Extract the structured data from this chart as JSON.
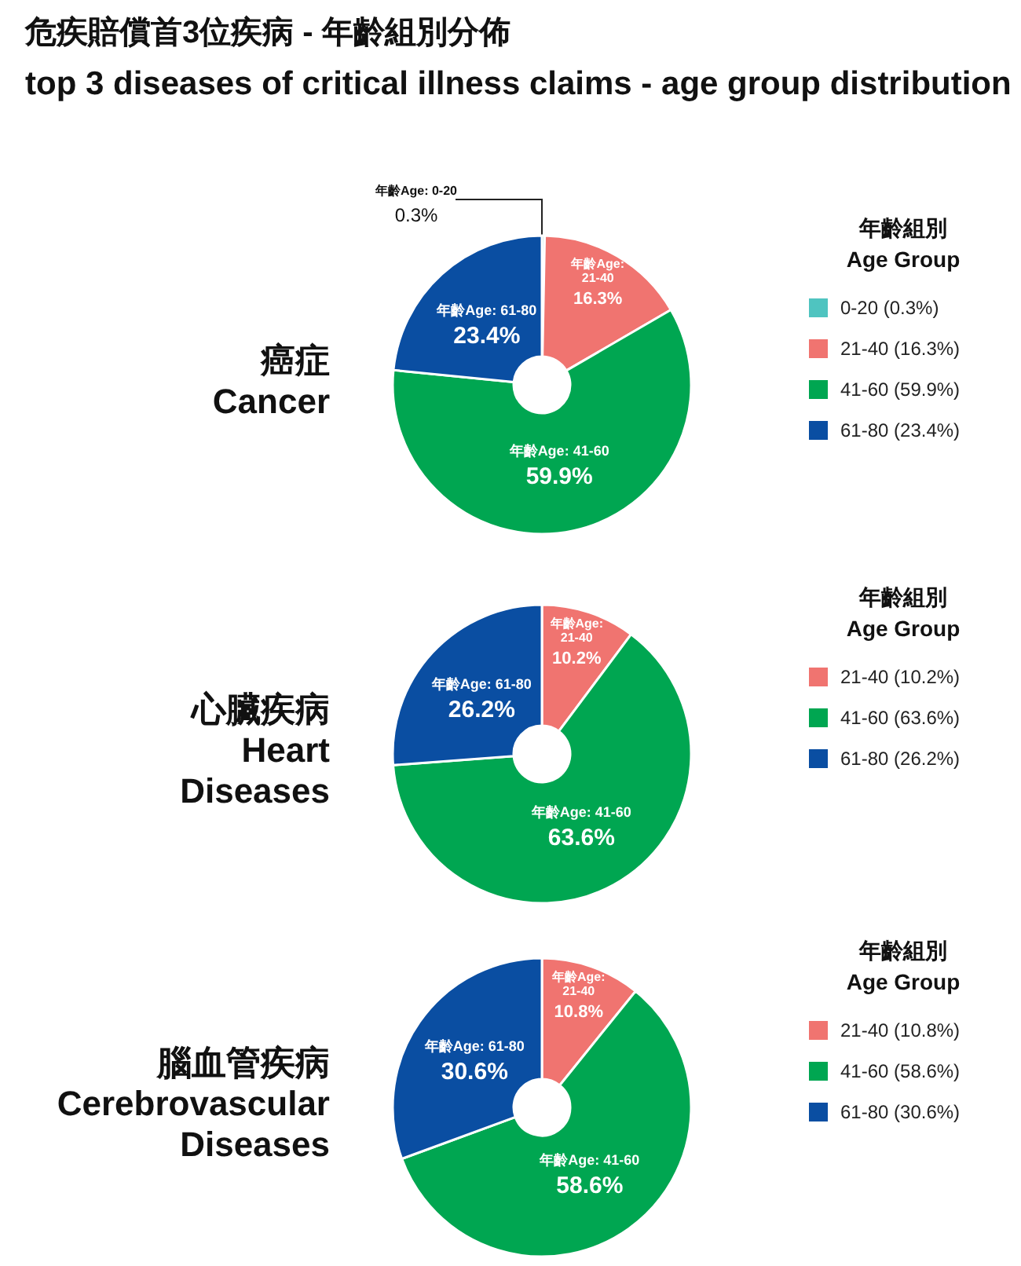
{
  "chart_data": [
    {
      "type": "other",
      "title": "危疾賠償首3位疾病 - 年齡組別分佈",
      "subtitle": "top 3 diseases of critical illness claims - age group distribution"
    },
    {
      "type": "donut",
      "title": "癌症",
      "subtitle": "Cancer",
      "legend_title": "年齡組別\nAge Group",
      "legend": "right",
      "categories": [
        "0-20 (0.3%)",
        "21-40 (16.3%)",
        "41-60 (59.9%)",
        "61-80 (23.4%)"
      ],
      "values": [
        0.3,
        16.3,
        59.9,
        23.4
      ],
      "value_labels": [
        "0.3%",
        "16.3%",
        "59.9%",
        "23.4%"
      ],
      "colors": [
        "#4fc4c0",
        "#f07470",
        "#00a651",
        "#0a4ea2"
      ],
      "annotations": [
        {
          "text": "年齡Age: 0-20",
          "x": "0-20 (0.3%)"
        },
        {
          "text": "年齡Age: 21-40",
          "x": "21-40 (16.3%)"
        },
        {
          "text": "年齡Age: 41-60",
          "x": "41-60 (59.9%)"
        },
        {
          "text": "年齡Age: 61-80",
          "x": "61-80 (23.4%)"
        }
      ]
    },
    {
      "type": "donut",
      "title": "心臟疾病",
      "subtitle": "Heart\nDiseases",
      "legend_title": "年齡組別\nAge Group",
      "legend": "right",
      "categories": [
        "21-40 (10.2%)",
        "41-60 (63.6%)",
        "61-80 (26.2%)"
      ],
      "values": [
        10.2,
        63.6,
        26.2
      ],
      "value_labels": [
        "10.2%",
        "63.6%",
        "26.2%"
      ],
      "colors": [
        "#f07470",
        "#00a651",
        "#0a4ea2"
      ],
      "annotations": [
        {
          "text": "年齡Age: 21-40",
          "x": "21-40 (10.2%)"
        },
        {
          "text": "年齡Age: 41-60",
          "x": "41-60 (63.6%)"
        },
        {
          "text": "年齡Age: 61-80",
          "x": "61-80 (26.2%)"
        }
      ]
    },
    {
      "type": "donut",
      "title": "腦血管疾病",
      "subtitle": "Cerebrovascular\nDiseases",
      "legend_title": "年齡組別\nAge Group",
      "legend": "right",
      "categories": [
        "21-40 (10.8%)",
        "41-60 (58.6%)",
        "61-80 (30.6%)"
      ],
      "values": [
        10.8,
        58.6,
        30.6
      ],
      "value_labels": [
        "10.8%",
        "58.6%",
        "30.6%"
      ],
      "colors": [
        "#f07470",
        "#00a651",
        "#0a4ea2"
      ],
      "annotations": [
        {
          "text": "年齡Age: 21-40",
          "x": "21-40 (10.8%)"
        },
        {
          "text": "年齡Age: 41-60",
          "x": "41-60 (58.6%)"
        },
        {
          "text": "年齡Age: 61-80",
          "x": "61-80 (30.6%)"
        }
      ]
    }
  ]
}
